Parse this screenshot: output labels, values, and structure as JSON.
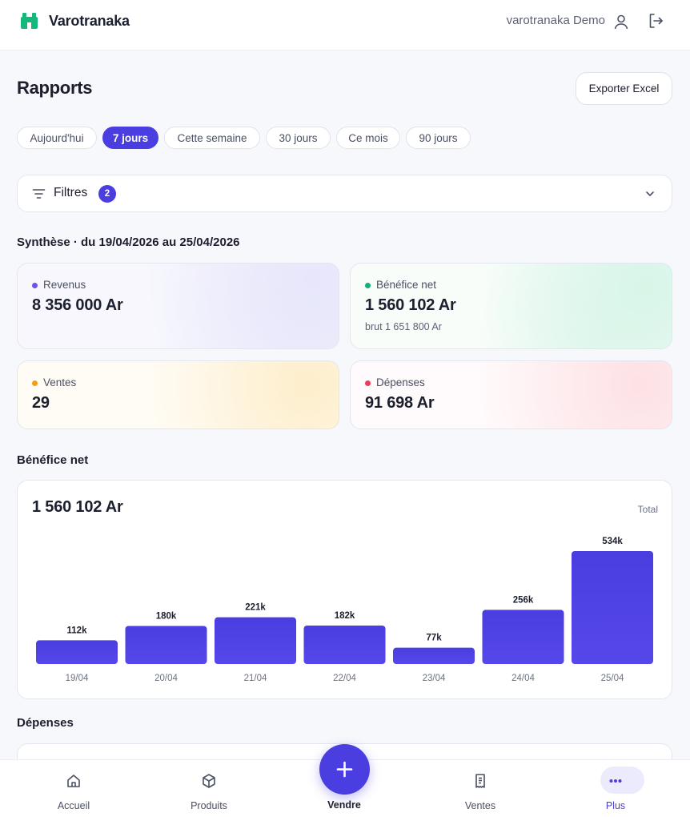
{
  "header": {
    "app_title": "Varotranaka",
    "user_name": "varotranaka Demo"
  },
  "page": {
    "title": "Rapports",
    "export_label": "Exporter Excel"
  },
  "periods": [
    {
      "label": "Aujourd'hui",
      "active": false
    },
    {
      "label": "7 jours",
      "active": true
    },
    {
      "label": "Cette semaine",
      "active": false
    },
    {
      "label": "30 jours",
      "active": false
    },
    {
      "label": "Ce mois",
      "active": false
    },
    {
      "label": "90 jours",
      "active": false
    }
  ],
  "filters": {
    "label": "Filtres",
    "count": "2"
  },
  "summary": {
    "title": "Synthèse · du 19/04/2026 au 25/04/2026",
    "revenus": {
      "label": "Revenus",
      "value": "8 356 000 Ar",
      "color": "#6b55e8"
    },
    "benefice": {
      "label": "Bénéfice net",
      "value": "1 560 102 Ar",
      "sub": "brut 1 651 800 Ar",
      "color": "#12b07a"
    },
    "ventes": {
      "label": "Ventes",
      "value": "29",
      "color": "#f59e0b"
    },
    "depenses": {
      "label": "Dépenses",
      "value": "91 698 Ar",
      "color": "#ef3b5b"
    }
  },
  "benefice_section": {
    "title": "Bénéfice net",
    "total": "1 560 102 Ar",
    "total_label": "Total"
  },
  "chart_data": {
    "type": "bar",
    "categories": [
      "19/04",
      "20/04",
      "21/04",
      "22/04",
      "23/04",
      "24/04",
      "25/04"
    ],
    "values": [
      112,
      180,
      221,
      182,
      77,
      256,
      534
    ],
    "data_labels": [
      "112k",
      "180k",
      "221k",
      "182k",
      "77k",
      "256k",
      "534k"
    ],
    "unit": "k",
    "ylim": [
      0,
      534
    ],
    "grid": false,
    "bar_color": "#4a3ee0"
  },
  "depenses_section": {
    "title": "Dépenses"
  },
  "nav": {
    "accueil": "Accueil",
    "produits": "Produits",
    "vendre": "Vendre",
    "ventes": "Ventes",
    "plus": "Plus"
  }
}
